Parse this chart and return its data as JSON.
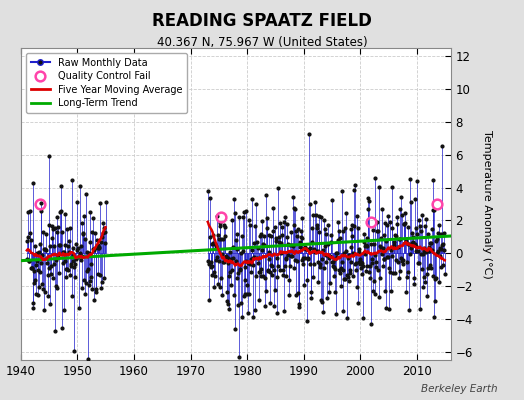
{
  "title": "READING SPAATZ FIELD",
  "subtitle": "40.367 N, 75.967 W (United States)",
  "ylabel": "Temperature Anomaly (°C)",
  "watermark": "Berkeley Earth",
  "xlim": [
    1940,
    2016
  ],
  "ylim": [
    -6.5,
    12.5
  ],
  "yticks": [
    -6,
    -4,
    -2,
    0,
    2,
    4,
    6,
    8,
    10,
    12
  ],
  "xticks": [
    1940,
    1950,
    1960,
    1970,
    1980,
    1990,
    2000,
    2010
  ],
  "bg_color": "#e0e0e0",
  "plot_bg_color": "#ffffff",
  "raw_color": "#2020cc",
  "dot_color": "#111111",
  "qc_color": "#ff44aa",
  "ma_color": "#dd0000",
  "trend_color": "#00aa00",
  "seed": 42,
  "period1_start": 1941,
  "period1_end": 1954,
  "period2_start": 1973,
  "period2_end": 2014
}
